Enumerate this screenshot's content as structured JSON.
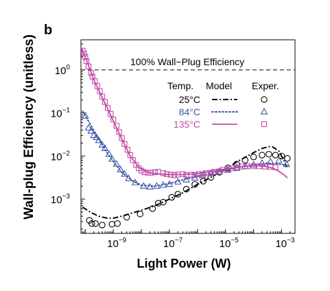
{
  "chart_data": {
    "type": "scatter",
    "panel_label": "b",
    "xlabel": "Light Power (W)",
    "ylabel": "Wall-plug Efficiency (unitless)",
    "xscale": "log",
    "yscale": "log",
    "xlim": [
      7e-11,
      0.003
    ],
    "ylim": [
      0.00016,
      5
    ],
    "xticks": [
      {
        "value": 1e-09,
        "base": "10",
        "exp": "−9"
      },
      {
        "value": 1e-07,
        "base": "10",
        "exp": "−7"
      },
      {
        "value": 1e-05,
        "base": "10",
        "exp": "−5"
      },
      {
        "value": 0.001,
        "base": "10",
        "exp": "−3"
      }
    ],
    "yticks": [
      {
        "value": 1,
        "base": "10",
        "exp": "0"
      },
      {
        "value": 0.1,
        "base": "10",
        "exp": "−1"
      },
      {
        "value": 0.01,
        "base": "10",
        "exp": "−2"
      },
      {
        "value": 0.001,
        "base": "10",
        "exp": "−3"
      }
    ],
    "reference_line": {
      "y": 1,
      "label": "100% Wall−Plug Efficiency",
      "color": "#000000"
    },
    "legend": {
      "position": "upper-right",
      "headers": [
        "Temp.",
        "Model",
        "Exper."
      ]
    },
    "series": [
      {
        "name": "25°C",
        "color": "#000000",
        "marker": "circle",
        "line_style": "dashdot",
        "experiment": [
          [
            1.4e-10,
            0.00032
          ],
          [
            1.7e-10,
            0.00027
          ],
          [
            2.3e-10,
            0.00027
          ],
          [
            4e-10,
            0.00025
          ],
          [
            9e-10,
            0.00026
          ],
          [
            1.4e-09,
            0.00027
          ],
          [
            3e-09,
            0.00038
          ],
          [
            9e-09,
            0.00045
          ],
          [
            2.5e-08,
            0.0006
          ],
          [
            4e-08,
            0.0008
          ],
          [
            6e-08,
            0.00085
          ],
          [
            1.2e-07,
            0.0011
          ],
          [
            2e-07,
            0.0013
          ],
          [
            4e-07,
            0.0017
          ],
          [
            8e-07,
            0.0022
          ],
          [
            1.6e-06,
            0.0026
          ],
          [
            3e-06,
            0.0032
          ],
          [
            6e-06,
            0.0042
          ],
          [
            1.2e-05,
            0.0053
          ],
          [
            2.5e-05,
            0.0065
          ],
          [
            5e-05,
            0.008
          ],
          [
            0.0001,
            0.0095
          ],
          [
            0.0002,
            0.0105
          ],
          [
            0.00035,
            0.011
          ],
          [
            0.0006,
            0.0105
          ],
          [
            0.001,
            0.01
          ],
          [
            0.0016,
            0.0088
          ]
        ],
        "model": [
          [
            8e-11,
            0.00065
          ],
          [
            1.5e-10,
            0.0005
          ],
          [
            3e-10,
            0.0004
          ],
          [
            6e-10,
            0.00036
          ],
          [
            1e-09,
            0.00036
          ],
          [
            2e-09,
            0.0004
          ],
          [
            5e-09,
            0.00048
          ],
          [
            1e-08,
            0.00055
          ],
          [
            3e-08,
            0.0007
          ],
          [
            1e-07,
            0.001
          ],
          [
            3e-07,
            0.0014
          ],
          [
            1e-06,
            0.0022
          ],
          [
            3e-06,
            0.0032
          ],
          [
            1e-05,
            0.005
          ],
          [
            3e-05,
            0.0078
          ],
          [
            0.0001,
            0.012
          ],
          [
            0.0002,
            0.015
          ],
          [
            0.00035,
            0.0165
          ],
          [
            0.0005,
            0.016
          ],
          [
            0.0008,
            0.013
          ],
          [
            0.0012,
            0.008
          ],
          [
            0.0015,
            0.0055
          ]
        ]
      },
      {
        "name": "84°C",
        "color": "#3a57a5",
        "marker": "triangle",
        "line_style": "dotted",
        "experiment": [
          [
            1e-10,
            0.085
          ],
          [
            1.3e-10,
            0.045
          ],
          [
            1.6e-10,
            0.038
          ],
          [
            2e-10,
            0.03
          ],
          [
            2.5e-10,
            0.027
          ],
          [
            3e-10,
            0.023
          ],
          [
            4e-10,
            0.018
          ],
          [
            5e-10,
            0.015
          ],
          [
            7e-10,
            0.011
          ],
          [
            9e-10,
            0.0085
          ],
          [
            1.3e-09,
            0.0065
          ],
          [
            1.8e-09,
            0.0048
          ],
          [
            2.5e-09,
            0.0038
          ],
          [
            3.5e-09,
            0.003
          ],
          [
            6e-09,
            0.0024
          ],
          [
            1.2e-08,
            0.002
          ],
          [
            2e-08,
            0.0019
          ],
          [
            3.5e-08,
            0.002
          ],
          [
            6e-08,
            0.0021
          ],
          [
            1e-07,
            0.0022
          ],
          [
            2e-07,
            0.0025
          ],
          [
            4e-07,
            0.0028
          ],
          [
            8e-07,
            0.0031
          ],
          [
            1.5e-06,
            0.0035
          ],
          [
            3e-06,
            0.0039
          ],
          [
            6e-06,
            0.0043
          ],
          [
            1.2e-05,
            0.0047
          ],
          [
            2.5e-05,
            0.0052
          ],
          [
            5e-05,
            0.0057
          ],
          [
            0.0001,
            0.0062
          ],
          [
            0.0002,
            0.0068
          ],
          [
            0.0004,
            0.0074
          ],
          [
            0.0008,
            0.0078
          ],
          [
            0.0015,
            0.0064
          ]
        ],
        "model": [
          [
            8e-11,
            0.11
          ],
          [
            1.5e-10,
            0.055
          ],
          [
            3e-10,
            0.025
          ],
          [
            6e-10,
            0.012
          ],
          [
            1e-09,
            0.0075
          ],
          [
            2e-09,
            0.0042
          ],
          [
            5e-09,
            0.0026
          ],
          [
            1e-08,
            0.0021
          ],
          [
            3e-08,
            0.002
          ],
          [
            1e-07,
            0.0023
          ],
          [
            3e-07,
            0.0028
          ],
          [
            1e-06,
            0.0034
          ],
          [
            3e-06,
            0.004
          ],
          [
            1e-05,
            0.0047
          ],
          [
            3e-05,
            0.0055
          ],
          [
            0.0001,
            0.0062
          ],
          [
            0.0003,
            0.0068
          ],
          [
            0.001,
            0.0064
          ],
          [
            0.0016,
            0.006
          ]
        ]
      },
      {
        "name": "135°C",
        "color": "#c24aa6",
        "marker": "square",
        "line_style": "solid",
        "experiment": [
          [
            8e-11,
            2.8
          ],
          [
            9e-11,
            2.4
          ],
          [
            1e-10,
            2.0
          ],
          [
            1.1e-10,
            1.6
          ],
          [
            1.3e-10,
            1.2
          ],
          [
            1.6e-10,
            0.85
          ],
          [
            1.8e-10,
            0.7
          ],
          [
            2.2e-10,
            0.55
          ],
          [
            2.7e-10,
            0.42
          ],
          [
            3.3e-10,
            0.32
          ],
          [
            4e-10,
            0.24
          ],
          [
            5e-10,
            0.18
          ],
          [
            6.3e-10,
            0.13
          ],
          [
            8e-10,
            0.095
          ],
          [
            1e-09,
            0.07
          ],
          [
            1.3e-09,
            0.05
          ],
          [
            1.6e-09,
            0.036
          ],
          [
            2e-09,
            0.026
          ],
          [
            2.5e-09,
            0.019
          ],
          [
            3.2e-09,
            0.014
          ],
          [
            4e-09,
            0.0105
          ],
          [
            5e-09,
            0.008
          ],
          [
            6.5e-09,
            0.0062
          ],
          [
            8e-09,
            0.0052
          ],
          [
            1e-08,
            0.0046
          ],
          [
            1.3e-08,
            0.0042
          ],
          [
            1.7e-08,
            0.0041
          ],
          [
            2.2e-08,
            0.0041
          ],
          [
            3e-08,
            0.0042
          ],
          [
            4e-08,
            0.0043
          ],
          [
            6e-08,
            0.004
          ],
          [
            8e-08,
            0.0038
          ],
          [
            1.1e-07,
            0.0037
          ],
          [
            1.5e-07,
            0.0036
          ],
          [
            2e-07,
            0.0037
          ],
          [
            3e-07,
            0.0038
          ],
          [
            4e-07,
            0.0036
          ],
          [
            6e-07,
            0.0037
          ],
          [
            8e-07,
            0.0036
          ],
          [
            1.1e-06,
            0.0038
          ],
          [
            1.5e-06,
            0.0038
          ],
          [
            2e-06,
            0.004
          ],
          [
            3e-06,
            0.0041
          ],
          [
            4e-06,
            0.0043
          ],
          [
            6e-06,
            0.0044
          ],
          [
            8e-06,
            0.0048
          ],
          [
            1.2e-05,
            0.005
          ],
          [
            1.8e-05,
            0.0052
          ],
          [
            2.5e-05,
            0.0055
          ],
          [
            4e-05,
            0.0057
          ],
          [
            6e-05,
            0.0058
          ],
          [
            0.0001,
            0.0058
          ],
          [
            0.00016,
            0.0058
          ],
          [
            0.00025,
            0.0057
          ],
          [
            0.0004,
            0.0056
          ],
          [
            0.0006,
            0.0055
          ]
        ],
        "model": [
          [
            7e-11,
            3.2
          ],
          [
            1e-10,
            2.0
          ],
          [
            2e-10,
            0.6
          ],
          [
            5e-10,
            0.17
          ],
          [
            1e-09,
            0.065
          ],
          [
            2e-09,
            0.025
          ],
          [
            4e-09,
            0.01
          ],
          [
            8e-09,
            0.0055
          ],
          [
            1.5e-08,
            0.0043
          ],
          [
            3e-08,
            0.0039
          ],
          [
            1e-07,
            0.0037
          ],
          [
            3e-07,
            0.0037
          ],
          [
            1e-06,
            0.0039
          ],
          [
            3e-06,
            0.0044
          ],
          [
            1e-05,
            0.005
          ],
          [
            3e-05,
            0.0056
          ],
          [
            0.0001,
            0.006
          ],
          [
            0.00025,
            0.0058
          ],
          [
            0.0005,
            0.0052
          ],
          [
            0.0008,
            0.0044
          ],
          [
            0.0012,
            0.0037
          ],
          [
            0.0016,
            0.0031
          ]
        ]
      }
    ]
  }
}
